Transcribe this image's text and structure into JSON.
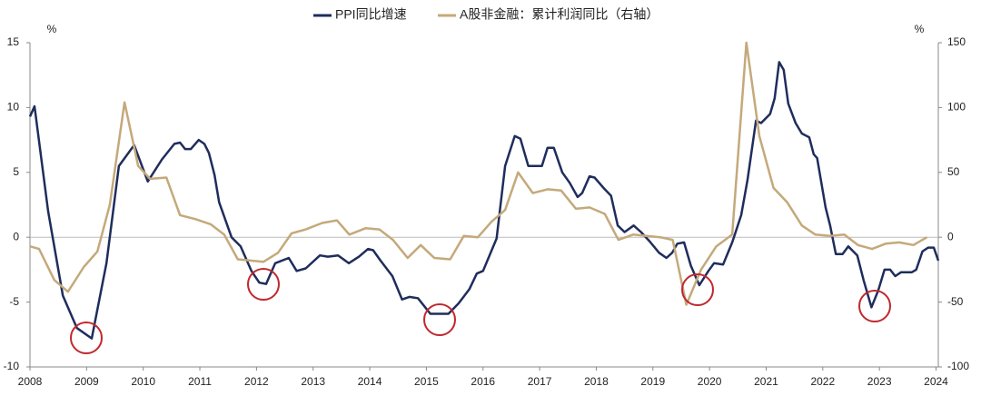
{
  "chart_data": {
    "type": "line",
    "y_label": "%",
    "y2_label": "%",
    "xlim": [
      2008,
      2024.04
    ],
    "xticks": [
      2008,
      2009,
      2010,
      2011,
      2012,
      2013,
      2014,
      2015,
      2016,
      2017,
      2018,
      2019,
      2020,
      2021,
      2022,
      2023,
      2024
    ],
    "ylim": [
      -10,
      15
    ],
    "yticks": [
      -10,
      -5,
      0,
      5,
      10,
      15
    ],
    "y2lim": [
      -100,
      150
    ],
    "y2ticks": [
      -100,
      -50,
      0,
      50,
      100,
      150
    ],
    "series": [
      {
        "name": "PPI同比增速",
        "color": "#1f2d5c",
        "x": [
          2008.0,
          2008.08,
          2008.32,
          2008.58,
          2008.83,
          2009.09,
          2009.35,
          2009.57,
          2009.84,
          2010.08,
          2010.33,
          2010.55,
          2010.65,
          2010.74,
          2010.84,
          2010.98,
          2011.08,
          2011.16,
          2011.26,
          2011.34,
          2011.56,
          2011.72,
          2011.91,
          2012.05,
          2012.17,
          2012.33,
          2012.57,
          2012.71,
          2012.87,
          2013.12,
          2013.26,
          2013.44,
          2013.63,
          2013.81,
          2013.97,
          2014.06,
          2014.19,
          2014.4,
          2014.57,
          2014.7,
          2014.85,
          2015.07,
          2015.39,
          2015.57,
          2015.76,
          2015.89,
          2016.0,
          2016.24,
          2016.39,
          2016.56,
          2016.66,
          2016.8,
          2017.04,
          2017.14,
          2017.25,
          2017.4,
          2017.53,
          2017.67,
          2017.75,
          2017.88,
          2017.97,
          2018.15,
          2018.26,
          2018.38,
          2018.5,
          2018.66,
          2018.79,
          2018.94,
          2019.11,
          2019.24,
          2019.34,
          2019.43,
          2019.55,
          2019.67,
          2019.82,
          2019.98,
          2020.08,
          2020.24,
          2020.4,
          2020.56,
          2020.67,
          2020.82,
          2020.91,
          2021.07,
          2021.15,
          2021.23,
          2021.31,
          2021.39,
          2021.52,
          2021.63,
          2021.76,
          2021.84,
          2021.9,
          2022.05,
          2022.13,
          2022.23,
          2022.35,
          2022.45,
          2022.61,
          2022.72,
          2022.86,
          2022.98,
          2023.09,
          2023.19,
          2023.28,
          2023.38,
          2023.57,
          2023.65,
          2023.76,
          2023.86,
          2023.96,
          2024.04
        ],
        "values": [
          9.3,
          10.1,
          2.0,
          -4.5,
          -7.0,
          -7.8,
          -2.0,
          5.5,
          7.1,
          4.3,
          6.0,
          7.2,
          7.3,
          6.8,
          6.8,
          7.5,
          7.2,
          6.5,
          4.8,
          2.7,
          0,
          -0.7,
          -2.6,
          -3.5,
          -3.6,
          -2.0,
          -1.6,
          -2.6,
          -2.4,
          -1.4,
          -1.5,
          -1.4,
          -2.0,
          -1.5,
          -0.9,
          -1.0,
          -1.8,
          -3.0,
          -4.8,
          -4.6,
          -4.7,
          -5.9,
          -5.9,
          -5.1,
          -4.0,
          -2.8,
          -2.6,
          -0.1,
          5.5,
          7.8,
          7.6,
          5.5,
          5.5,
          6.9,
          6.9,
          5.0,
          4.2,
          3.1,
          3.4,
          4.7,
          4.6,
          3.7,
          3.2,
          0.9,
          0.4,
          0.9,
          0.4,
          -0.3,
          -1.2,
          -1.6,
          -1.2,
          -0.5,
          -0.4,
          -2.2,
          -3.7,
          -2.6,
          -2.0,
          -2.1,
          -0.4,
          1.7,
          4.4,
          9.0,
          8.8,
          9.5,
          10.7,
          13.5,
          12.9,
          10.3,
          8.8,
          8.0,
          7.7,
          6.4,
          6.1,
          2.3,
          0.9,
          -1.3,
          -1.3,
          -0.7,
          -1.4,
          -3.3,
          -5.4,
          -4.1,
          -2.5,
          -2.5,
          -3.0,
          -2.7,
          -2.7,
          -2.5,
          -1.1,
          -0.8,
          -0.8,
          -1.8
        ]
      },
      {
        "name": "A股非金融：累计利润同比（右轴）",
        "color": "#c4a97a",
        "axis": "y2",
        "x": [
          2008.0,
          2008.16,
          2008.43,
          2008.67,
          2008.95,
          2009.19,
          2009.41,
          2009.67,
          2009.91,
          2010.12,
          2010.41,
          2010.65,
          2010.92,
          2011.19,
          2011.43,
          2011.67,
          2012.12,
          2012.38,
          2012.62,
          2012.87,
          2013.16,
          2013.42,
          2013.64,
          2013.93,
          2014.17,
          2014.41,
          2014.67,
          2014.9,
          2015.14,
          2015.42,
          2015.66,
          2015.91,
          2016.15,
          2016.39,
          2016.62,
          2016.88,
          2017.14,
          2017.38,
          2017.64,
          2017.88,
          2018.15,
          2018.39,
          2018.65,
          2018.89,
          2019.13,
          2019.35,
          2019.59,
          2019.85,
          2020.12,
          2020.4,
          2020.65,
          2020.88,
          2021.13,
          2021.37,
          2021.63,
          2021.87,
          2022.13,
          2022.38,
          2022.62,
          2022.87,
          2023.11,
          2023.35,
          2023.6,
          2023.84
        ],
        "values": [
          -7,
          -9,
          -33,
          -42,
          -23,
          -11,
          25,
          104,
          55,
          45,
          46,
          17,
          14,
          10,
          2,
          -17,
          -19,
          -12,
          3,
          6,
          11,
          13,
          2,
          7,
          6,
          -2,
          -16,
          -6,
          -16,
          -17,
          1,
          0,
          12,
          21,
          50,
          34,
          37,
          36,
          22,
          23,
          18,
          -2,
          2,
          1,
          0,
          -2,
          -52,
          -25,
          -7,
          2,
          150,
          78,
          38,
          27,
          9,
          2,
          1,
          2,
          -6,
          -9,
          -5,
          -4,
          -6,
          0
        ]
      }
    ]
  }
}
